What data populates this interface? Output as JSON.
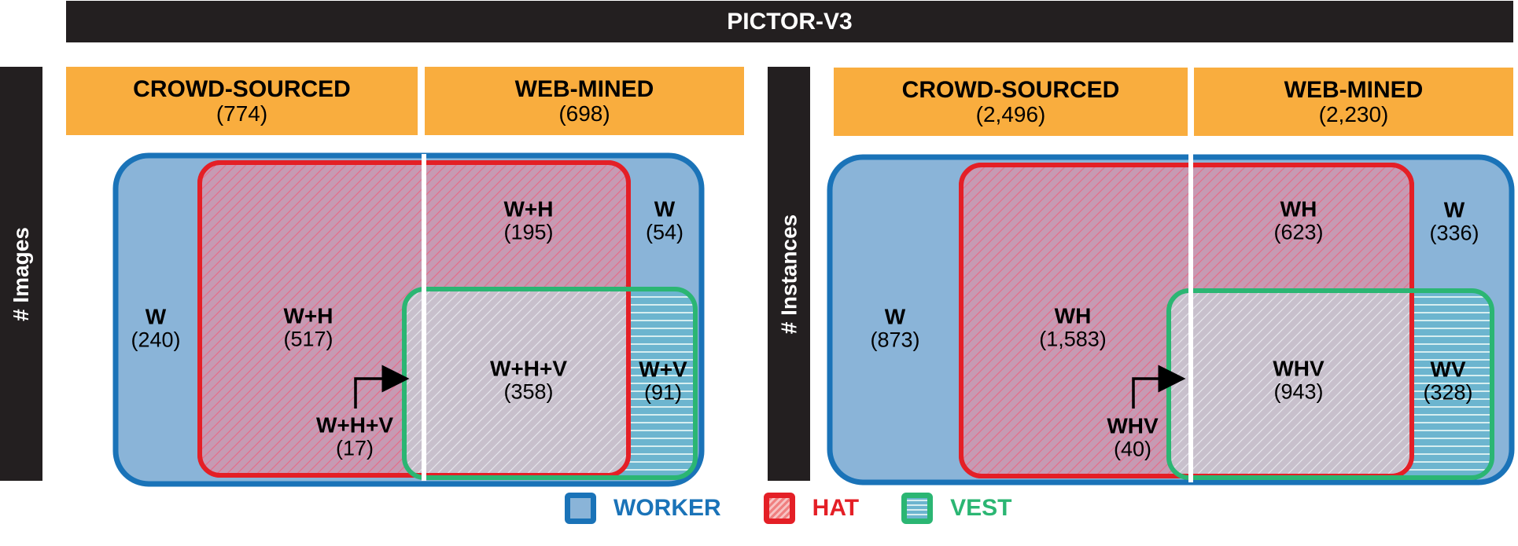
{
  "title": "PICTOR-V3",
  "colors": {
    "worker": "#1a73b8",
    "worker_fill": "#8ab4d8",
    "hat": "#e41f26",
    "vest": "#2bb673",
    "header_fill": "#f9ad3e",
    "dark": "#231f20"
  },
  "panels": [
    {
      "side_label": "# Images",
      "headers": [
        {
          "title": "CROWD-SOURCED",
          "count": "(774)"
        },
        {
          "title": "WEB-MINED",
          "count": "(698)"
        }
      ],
      "regions": {
        "w_left": {
          "name": "W",
          "count": "(240)"
        },
        "wh_left": {
          "name": "W+H",
          "count": "(517)"
        },
        "whv_left": {
          "name": "W+H+V",
          "count": "(17)"
        },
        "wh_right": {
          "name": "W+H",
          "count": "(195)"
        },
        "w_right": {
          "name": "W",
          "count": "(54)"
        },
        "whv_right": {
          "name": "W+H+V",
          "count": "(358)"
        },
        "wv_right": {
          "name": "W+V",
          "count": "(91)"
        }
      }
    },
    {
      "side_label": "# Instances",
      "headers": [
        {
          "title": "CROWD-SOURCED",
          "count": "(2,496)"
        },
        {
          "title": "WEB-MINED",
          "count": "(2,230)"
        }
      ],
      "regions": {
        "w_left": {
          "name": "W",
          "count": "(873)"
        },
        "wh_left": {
          "name": "WH",
          "count": "(1,583)"
        },
        "whv_left": {
          "name": "WHV",
          "count": "(40)"
        },
        "wh_right": {
          "name": "WH",
          "count": "(623)"
        },
        "w_right": {
          "name": "W",
          "count": "(336)"
        },
        "whv_right": {
          "name": "WHV",
          "count": "(943)"
        },
        "wv_right": {
          "name": "WV",
          "count": "(328)"
        }
      }
    }
  ],
  "legend": [
    {
      "label": "WORKER",
      "color": "#1a73b8",
      "icon": "worker-swatch"
    },
    {
      "label": "HAT",
      "color": "#e41f26",
      "icon": "hat-swatch"
    },
    {
      "label": "VEST",
      "color": "#2bb673",
      "icon": "vest-swatch"
    }
  ]
}
